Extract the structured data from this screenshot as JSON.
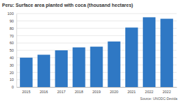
{
  "chart_data": {
    "type": "bar",
    "title": "Peru: Surface area planted with coca (thousand hectares)",
    "source": "Source: UNODC-Devida",
    "categories": [
      "2015",
      "2016",
      "2017",
      "2018",
      "2019",
      "2020",
      "2021",
      "2022",
      "2022"
    ],
    "values": [
      40,
      44,
      50,
      54,
      55,
      62,
      81,
      95,
      93
    ],
    "color": "#2f78c4",
    "ylim": [
      0,
      100
    ],
    "yticks": [
      0,
      10,
      20,
      30,
      40,
      50,
      60,
      70,
      80,
      90,
      100
    ],
    "grid": true
  }
}
